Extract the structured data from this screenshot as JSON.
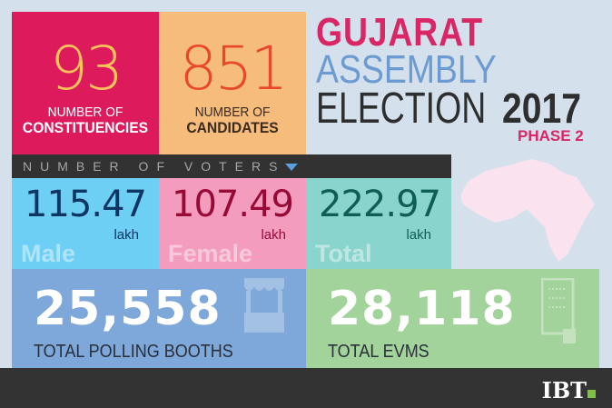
{
  "title": {
    "line1": "GUJARAT",
    "line2": "ASSEMBLY",
    "line3": "ELECTION",
    "year": "2017",
    "phase": "PHASE 2"
  },
  "constituencies": {
    "value": "93",
    "label1": "NUMBER OF",
    "label2": "CONSTITUENCIES"
  },
  "candidates": {
    "value": "851",
    "label1": "NUMBER OF",
    "label2": "CANDIDATES"
  },
  "voters": {
    "header": "NUMBER OF VOTERS",
    "male": {
      "value": "115.47",
      "unit": "lakh",
      "label": "Male"
    },
    "female": {
      "value": "107.49",
      "unit": "lakh",
      "label": "Female"
    },
    "total": {
      "value": "222.97",
      "unit": "lakh",
      "label": "Total"
    }
  },
  "booths": {
    "value": "25,558",
    "label": "TOTAL POLLING BOOTHS"
  },
  "evms": {
    "value": "28,118",
    "label": "TOTAL EVMS"
  },
  "footer": {
    "logo": "IBT"
  },
  "colors": {
    "crimson": "#dc1a5c",
    "peach": "#f6bc7c",
    "cyan": "#6ecff4",
    "pink": "#f39cbe",
    "teal": "#89d4cd",
    "blue": "#7ea7da",
    "green": "#a2d39b"
  }
}
